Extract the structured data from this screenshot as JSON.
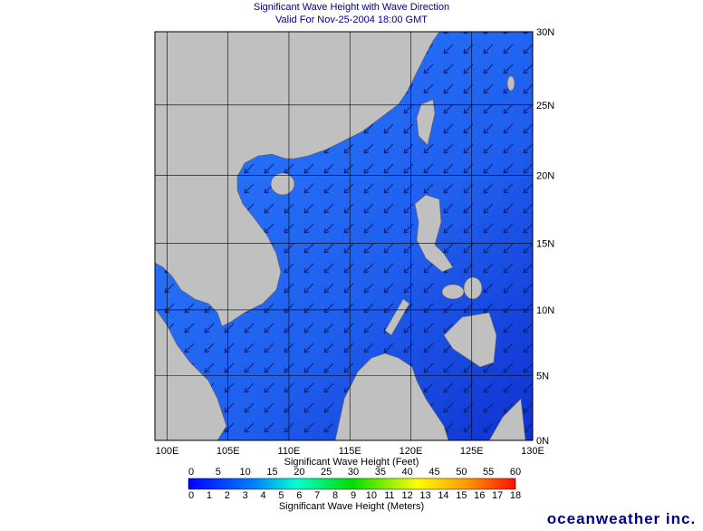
{
  "title": "Significant Wave Height with Wave Direction",
  "subtitle": "Valid For Nov-25-2004 18:00 GMT",
  "lon_range": [
    99,
    130
  ],
  "lat_range": [
    0,
    30
  ],
  "lon_ticks": [
    {
      "value": 100,
      "label": "100E"
    },
    {
      "value": 105,
      "label": "105E"
    },
    {
      "value": 110,
      "label": "110E"
    },
    {
      "value": 115,
      "label": "115E"
    },
    {
      "value": 120,
      "label": "120E"
    },
    {
      "value": 125,
      "label": "125E"
    },
    {
      "value": 130,
      "label": "130E"
    }
  ],
  "lat_ticks": [
    {
      "value": 0,
      "label": "0N"
    },
    {
      "value": 5,
      "label": "5N"
    },
    {
      "value": 10,
      "label": "10N"
    },
    {
      "value": 15,
      "label": "15N"
    },
    {
      "value": 20,
      "label": "20N"
    },
    {
      "value": 25,
      "label": "25N"
    },
    {
      "value": 30,
      "label": "30N"
    }
  ],
  "colorbar": {
    "feet_title": "Significant Wave Height (Feet)",
    "feet_ticks": [
      0,
      5,
      10,
      15,
      20,
      25,
      30,
      35,
      40,
      45,
      50,
      55,
      60
    ],
    "meters_title": "Significant Wave Height (Meters)",
    "meters_ticks": [
      0,
      1,
      2,
      3,
      4,
      5,
      6,
      7,
      8,
      9,
      10,
      11,
      12,
      13,
      14,
      15,
      16,
      17,
      18
    ]
  },
  "brand": "oceanweather inc."
}
